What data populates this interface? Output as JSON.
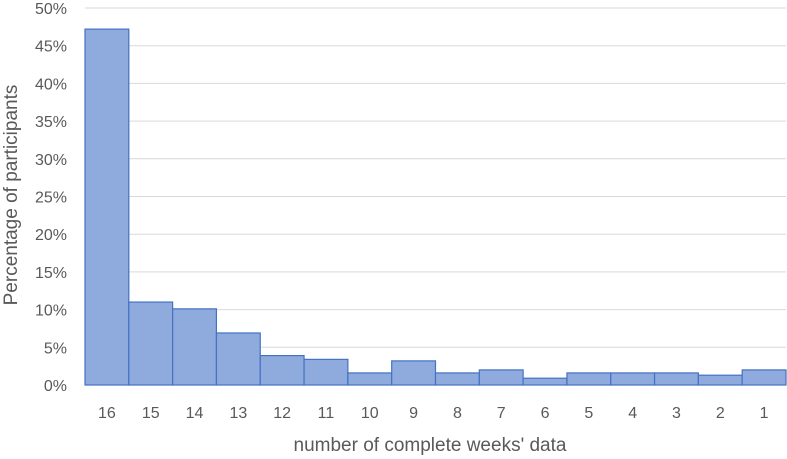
{
  "chart_data": {
    "type": "bar",
    "title": "",
    "xlabel": "number of complete weeks' data",
    "ylabel": "Percentage of participants",
    "categories": [
      "16",
      "15",
      "14",
      "13",
      "12",
      "11",
      "10",
      "9",
      "8",
      "7",
      "6",
      "5",
      "4",
      "3",
      "2",
      "1"
    ],
    "values": [
      47.2,
      11.0,
      10.1,
      6.9,
      3.9,
      3.4,
      1.6,
      3.2,
      1.6,
      2.0,
      0.9,
      1.6,
      1.6,
      1.6,
      1.3,
      2.0
    ],
    "ylim": [
      0,
      50
    ],
    "yticks": [
      "0%",
      "5%",
      "10%",
      "15%",
      "20%",
      "25%",
      "30%",
      "35%",
      "40%",
      "45%",
      "50%"
    ],
    "grid": true,
    "bar_gap": false,
    "colors": {
      "bar_fill": "#8faadc",
      "bar_edge": "#4472c4",
      "grid": "#d9d9d9"
    }
  }
}
